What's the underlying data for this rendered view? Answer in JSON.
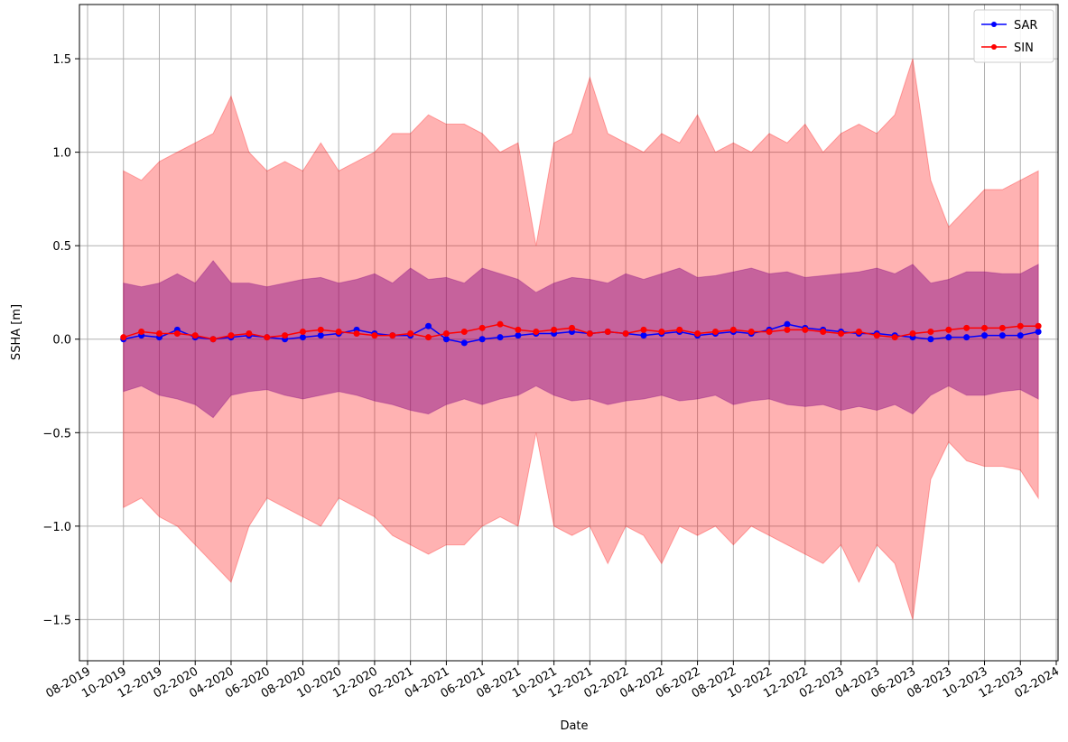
{
  "chart_data": {
    "type": "line",
    "x_label": "Date",
    "y_label": "SSHA [m]",
    "x": [
      "2019-10",
      "2019-11",
      "2019-12",
      "2020-01",
      "2020-02",
      "2020-03",
      "2020-04",
      "2020-05",
      "2020-06",
      "2020-07",
      "2020-08",
      "2020-09",
      "2020-10",
      "2020-11",
      "2020-12",
      "2021-01",
      "2021-02",
      "2021-03",
      "2021-04",
      "2021-05",
      "2021-06",
      "2021-07",
      "2021-08",
      "2021-09",
      "2021-10",
      "2021-11",
      "2021-12",
      "2022-01",
      "2022-02",
      "2022-03",
      "2022-04",
      "2022-05",
      "2022-06",
      "2022-07",
      "2022-08",
      "2022-09",
      "2022-10",
      "2022-11",
      "2022-12",
      "2023-01",
      "2023-02",
      "2023-03",
      "2023-04",
      "2023-05",
      "2023-06",
      "2023-07",
      "2023-08",
      "2023-09",
      "2023-10",
      "2023-11",
      "2023-12",
      "2024-01"
    ],
    "series": [
      {
        "name": "SAR",
        "color": "#0000ff",
        "band_color": "#800080",
        "values": [
          0.0,
          0.02,
          0.01,
          0.05,
          0.01,
          0.0,
          0.01,
          0.02,
          0.01,
          0.0,
          0.01,
          0.02,
          0.03,
          0.05,
          0.03,
          0.02,
          0.02,
          0.07,
          0.0,
          -0.02,
          0.0,
          0.01,
          0.02,
          0.03,
          0.03,
          0.04,
          0.03,
          0.04,
          0.03,
          0.02,
          0.03,
          0.04,
          0.02,
          0.03,
          0.04,
          0.03,
          0.05,
          0.08,
          0.06,
          0.05,
          0.04,
          0.03,
          0.03,
          0.02,
          0.01,
          0.0,
          0.01,
          0.01,
          0.02,
          0.02,
          0.02,
          0.04
        ],
        "upper": [
          0.3,
          0.28,
          0.3,
          0.35,
          0.3,
          0.42,
          0.3,
          0.3,
          0.28,
          0.3,
          0.32,
          0.33,
          0.3,
          0.32,
          0.35,
          0.3,
          0.38,
          0.32,
          0.33,
          0.3,
          0.38,
          0.35,
          0.32,
          0.25,
          0.3,
          0.33,
          0.32,
          0.3,
          0.35,
          0.32,
          0.35,
          0.38,
          0.33,
          0.34,
          0.36,
          0.38,
          0.35,
          0.36,
          0.33,
          0.34,
          0.35,
          0.36,
          0.38,
          0.35,
          0.4,
          0.3,
          0.32,
          0.36,
          0.36,
          0.35,
          0.35,
          0.4
        ],
        "lower": [
          -0.28,
          -0.25,
          -0.3,
          -0.32,
          -0.35,
          -0.42,
          -0.3,
          -0.28,
          -0.27,
          -0.3,
          -0.32,
          -0.3,
          -0.28,
          -0.3,
          -0.33,
          -0.35,
          -0.38,
          -0.4,
          -0.35,
          -0.32,
          -0.35,
          -0.32,
          -0.3,
          -0.25,
          -0.3,
          -0.33,
          -0.32,
          -0.35,
          -0.33,
          -0.32,
          -0.3,
          -0.33,
          -0.32,
          -0.3,
          -0.35,
          -0.33,
          -0.32,
          -0.35,
          -0.36,
          -0.35,
          -0.38,
          -0.36,
          -0.38,
          -0.35,
          -0.4,
          -0.3,
          -0.25,
          -0.3,
          -0.3,
          -0.28,
          -0.27,
          -0.32
        ]
      },
      {
        "name": "SIN",
        "color": "#ff0000",
        "band_color": "#ff0000",
        "values": [
          0.01,
          0.04,
          0.03,
          0.03,
          0.02,
          0.0,
          0.02,
          0.03,
          0.01,
          0.02,
          0.04,
          0.05,
          0.04,
          0.03,
          0.02,
          0.02,
          0.03,
          0.01,
          0.03,
          0.04,
          0.06,
          0.08,
          0.05,
          0.04,
          0.05,
          0.06,
          0.03,
          0.04,
          0.03,
          0.05,
          0.04,
          0.05,
          0.03,
          0.04,
          0.05,
          0.04,
          0.04,
          0.05,
          0.05,
          0.04,
          0.03,
          0.04,
          0.02,
          0.01,
          0.03,
          0.04,
          0.05,
          0.06,
          0.06,
          0.06,
          0.07,
          0.07
        ],
        "upper": [
          0.9,
          0.85,
          0.95,
          1.0,
          1.05,
          1.1,
          1.3,
          1.0,
          0.9,
          0.95,
          0.9,
          1.05,
          0.9,
          0.95,
          1.0,
          1.1,
          1.1,
          1.2,
          1.15,
          1.15,
          1.1,
          1.0,
          1.05,
          0.5,
          1.05,
          1.1,
          1.4,
          1.1,
          1.05,
          1.0,
          1.1,
          1.05,
          1.2,
          1.0,
          1.05,
          1.0,
          1.1,
          1.05,
          1.15,
          1.0,
          1.1,
          1.15,
          1.1,
          1.2,
          1.5,
          0.85,
          0.6,
          0.7,
          0.8,
          0.8,
          0.85,
          0.9
        ],
        "lower": [
          -0.9,
          -0.85,
          -0.95,
          -1.0,
          -1.1,
          -1.2,
          -1.3,
          -1.0,
          -0.85,
          -0.9,
          -0.95,
          -1.0,
          -0.85,
          -0.9,
          -0.95,
          -1.05,
          -1.1,
          -1.15,
          -1.1,
          -1.1,
          -1.0,
          -0.95,
          -1.0,
          -0.5,
          -1.0,
          -1.05,
          -1.0,
          -1.2,
          -1.0,
          -1.05,
          -1.2,
          -1.0,
          -1.05,
          -1.0,
          -1.1,
          -1.0,
          -1.05,
          -1.1,
          -1.15,
          -1.2,
          -1.1,
          -1.3,
          -1.1,
          -1.2,
          -1.5,
          -0.75,
          -0.55,
          -0.65,
          -0.68,
          -0.68,
          -0.7,
          -0.85
        ]
      }
    ],
    "xlim": [
      "2019-08",
      "2024-02"
    ],
    "xticks": [
      {
        "value": "2019-08",
        "label": "08-2019"
      },
      {
        "value": "2019-10",
        "label": "10-2019"
      },
      {
        "value": "2019-12",
        "label": "12-2019"
      },
      {
        "value": "2020-02",
        "label": "02-2020"
      },
      {
        "value": "2020-04",
        "label": "04-2020"
      },
      {
        "value": "2020-06",
        "label": "06-2020"
      },
      {
        "value": "2020-08",
        "label": "08-2020"
      },
      {
        "value": "2020-10",
        "label": "10-2020"
      },
      {
        "value": "2020-12",
        "label": "12-2020"
      },
      {
        "value": "2021-02",
        "label": "02-2021"
      },
      {
        "value": "2021-04",
        "label": "04-2021"
      },
      {
        "value": "2021-06",
        "label": "06-2021"
      },
      {
        "value": "2021-08",
        "label": "08-2021"
      },
      {
        "value": "2021-10",
        "label": "10-2021"
      },
      {
        "value": "2021-12",
        "label": "12-2021"
      },
      {
        "value": "2022-02",
        "label": "02-2022"
      },
      {
        "value": "2022-04",
        "label": "04-2022"
      },
      {
        "value": "2022-06",
        "label": "06-2022"
      },
      {
        "value": "2022-08",
        "label": "08-2022"
      },
      {
        "value": "2022-10",
        "label": "10-2022"
      },
      {
        "value": "2022-12",
        "label": "12-2022"
      },
      {
        "value": "2023-02",
        "label": "02-2023"
      },
      {
        "value": "2023-04",
        "label": "04-2023"
      },
      {
        "value": "2023-06",
        "label": "06-2023"
      },
      {
        "value": "2023-08",
        "label": "08-2023"
      },
      {
        "value": "2023-10",
        "label": "10-2023"
      },
      {
        "value": "2023-12",
        "label": "12-2023"
      },
      {
        "value": "2024-02",
        "label": "02-2024"
      }
    ],
    "ylim": [
      -1.72,
      1.79
    ],
    "yticks": [
      {
        "value": -1.5,
        "label": "−1.5"
      },
      {
        "value": -1.0,
        "label": "−1.0"
      },
      {
        "value": -0.5,
        "label": "−0.5"
      },
      {
        "value": 0.0,
        "label": "0.0"
      },
      0.5,
      {
        "value": 1.0,
        "label": "1.0"
      },
      1.5
    ],
    "grid": true,
    "legend": "upper right"
  }
}
